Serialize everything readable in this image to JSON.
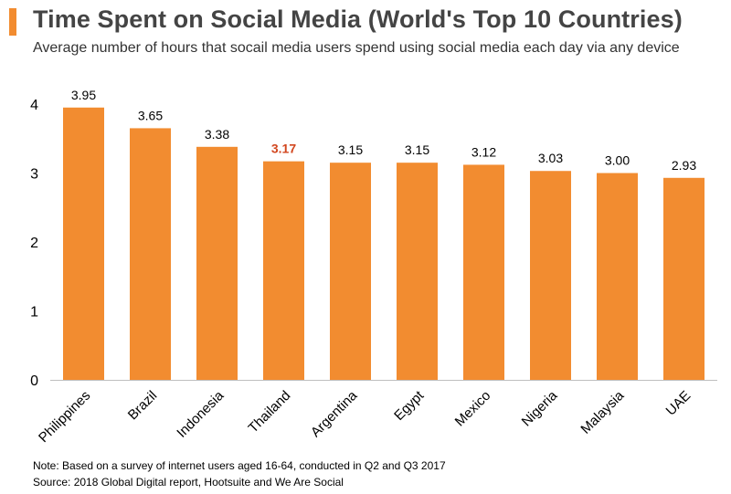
{
  "header": {
    "title": "Time Spent on Social Media (World's Top 10 Countries)",
    "subtitle": "Average number of hours that socail media users spend using social media each day via any device"
  },
  "colors": {
    "accent": "#f28c30",
    "highlight_label": "#d2461e",
    "label": "#000000",
    "axis": "#bfbfbf"
  },
  "chart_data": {
    "type": "bar",
    "title": "Time Spent on Social Media (World's Top 10 Countries)",
    "xlabel": "",
    "ylabel": "",
    "ylim": [
      0,
      4
    ],
    "yticks": [
      0,
      1,
      2,
      3,
      4
    ],
    "grid": false,
    "categories": [
      "Philippines",
      "Brazil",
      "Indonesia",
      "Thailand",
      "Argentina",
      "Egypt",
      "Mexico",
      "Nigeria",
      "Malaysia",
      "UAE"
    ],
    "values": [
      3.95,
      3.65,
      3.38,
      3.17,
      3.15,
      3.15,
      3.12,
      3.03,
      3.0,
      2.93
    ],
    "value_labels": [
      "3.95",
      "3.65",
      "3.38",
      "3.17",
      "3.15",
      "3.15",
      "3.12",
      "3.03",
      "3.00",
      "2.93"
    ],
    "highlighted_category": "Thailand"
  },
  "footer": {
    "note": "Note: Based on a survey of internet users aged 16-64, conducted in Q2 and Q3 2017",
    "source": "Source: 2018 Global Digital report, Hootsuite and We Are Social"
  }
}
